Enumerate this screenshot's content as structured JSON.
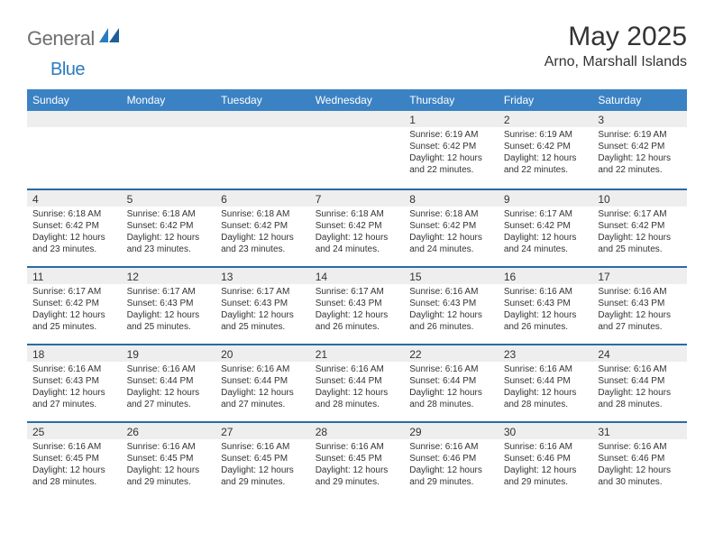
{
  "brand": {
    "name_a": "General",
    "name_b": "Blue"
  },
  "title": "May 2025",
  "location": "Arno, Marshall Islands",
  "colors": {
    "header_bg": "#3b82c4",
    "header_rule": "#2b6aa3",
    "band_bg": "#eeeeee",
    "text": "#333333",
    "logo_gray": "#6f6f6f",
    "logo_blue": "#2b7bbf",
    "page_bg": "#ffffff"
  },
  "day_names": [
    "Sunday",
    "Monday",
    "Tuesday",
    "Wednesday",
    "Thursday",
    "Friday",
    "Saturday"
  ],
  "weeks": [
    [
      {
        "n": "",
        "sunrise": "",
        "sunset": "",
        "daylight": ""
      },
      {
        "n": "",
        "sunrise": "",
        "sunset": "",
        "daylight": ""
      },
      {
        "n": "",
        "sunrise": "",
        "sunset": "",
        "daylight": ""
      },
      {
        "n": "",
        "sunrise": "",
        "sunset": "",
        "daylight": ""
      },
      {
        "n": "1",
        "sunrise": "Sunrise: 6:19 AM",
        "sunset": "Sunset: 6:42 PM",
        "daylight": "Daylight: 12 hours and 22 minutes."
      },
      {
        "n": "2",
        "sunrise": "Sunrise: 6:19 AM",
        "sunset": "Sunset: 6:42 PM",
        "daylight": "Daylight: 12 hours and 22 minutes."
      },
      {
        "n": "3",
        "sunrise": "Sunrise: 6:19 AM",
        "sunset": "Sunset: 6:42 PM",
        "daylight": "Daylight: 12 hours and 22 minutes."
      }
    ],
    [
      {
        "n": "4",
        "sunrise": "Sunrise: 6:18 AM",
        "sunset": "Sunset: 6:42 PM",
        "daylight": "Daylight: 12 hours and 23 minutes."
      },
      {
        "n": "5",
        "sunrise": "Sunrise: 6:18 AM",
        "sunset": "Sunset: 6:42 PM",
        "daylight": "Daylight: 12 hours and 23 minutes."
      },
      {
        "n": "6",
        "sunrise": "Sunrise: 6:18 AM",
        "sunset": "Sunset: 6:42 PM",
        "daylight": "Daylight: 12 hours and 23 minutes."
      },
      {
        "n": "7",
        "sunrise": "Sunrise: 6:18 AM",
        "sunset": "Sunset: 6:42 PM",
        "daylight": "Daylight: 12 hours and 24 minutes."
      },
      {
        "n": "8",
        "sunrise": "Sunrise: 6:18 AM",
        "sunset": "Sunset: 6:42 PM",
        "daylight": "Daylight: 12 hours and 24 minutes."
      },
      {
        "n": "9",
        "sunrise": "Sunrise: 6:17 AM",
        "sunset": "Sunset: 6:42 PM",
        "daylight": "Daylight: 12 hours and 24 minutes."
      },
      {
        "n": "10",
        "sunrise": "Sunrise: 6:17 AM",
        "sunset": "Sunset: 6:42 PM",
        "daylight": "Daylight: 12 hours and 25 minutes."
      }
    ],
    [
      {
        "n": "11",
        "sunrise": "Sunrise: 6:17 AM",
        "sunset": "Sunset: 6:42 PM",
        "daylight": "Daylight: 12 hours and 25 minutes."
      },
      {
        "n": "12",
        "sunrise": "Sunrise: 6:17 AM",
        "sunset": "Sunset: 6:43 PM",
        "daylight": "Daylight: 12 hours and 25 minutes."
      },
      {
        "n": "13",
        "sunrise": "Sunrise: 6:17 AM",
        "sunset": "Sunset: 6:43 PM",
        "daylight": "Daylight: 12 hours and 25 minutes."
      },
      {
        "n": "14",
        "sunrise": "Sunrise: 6:17 AM",
        "sunset": "Sunset: 6:43 PM",
        "daylight": "Daylight: 12 hours and 26 minutes."
      },
      {
        "n": "15",
        "sunrise": "Sunrise: 6:16 AM",
        "sunset": "Sunset: 6:43 PM",
        "daylight": "Daylight: 12 hours and 26 minutes."
      },
      {
        "n": "16",
        "sunrise": "Sunrise: 6:16 AM",
        "sunset": "Sunset: 6:43 PM",
        "daylight": "Daylight: 12 hours and 26 minutes."
      },
      {
        "n": "17",
        "sunrise": "Sunrise: 6:16 AM",
        "sunset": "Sunset: 6:43 PM",
        "daylight": "Daylight: 12 hours and 27 minutes."
      }
    ],
    [
      {
        "n": "18",
        "sunrise": "Sunrise: 6:16 AM",
        "sunset": "Sunset: 6:43 PM",
        "daylight": "Daylight: 12 hours and 27 minutes."
      },
      {
        "n": "19",
        "sunrise": "Sunrise: 6:16 AM",
        "sunset": "Sunset: 6:44 PM",
        "daylight": "Daylight: 12 hours and 27 minutes."
      },
      {
        "n": "20",
        "sunrise": "Sunrise: 6:16 AM",
        "sunset": "Sunset: 6:44 PM",
        "daylight": "Daylight: 12 hours and 27 minutes."
      },
      {
        "n": "21",
        "sunrise": "Sunrise: 6:16 AM",
        "sunset": "Sunset: 6:44 PM",
        "daylight": "Daylight: 12 hours and 28 minutes."
      },
      {
        "n": "22",
        "sunrise": "Sunrise: 6:16 AM",
        "sunset": "Sunset: 6:44 PM",
        "daylight": "Daylight: 12 hours and 28 minutes."
      },
      {
        "n": "23",
        "sunrise": "Sunrise: 6:16 AM",
        "sunset": "Sunset: 6:44 PM",
        "daylight": "Daylight: 12 hours and 28 minutes."
      },
      {
        "n": "24",
        "sunrise": "Sunrise: 6:16 AM",
        "sunset": "Sunset: 6:44 PM",
        "daylight": "Daylight: 12 hours and 28 minutes."
      }
    ],
    [
      {
        "n": "25",
        "sunrise": "Sunrise: 6:16 AM",
        "sunset": "Sunset: 6:45 PM",
        "daylight": "Daylight: 12 hours and 28 minutes."
      },
      {
        "n": "26",
        "sunrise": "Sunrise: 6:16 AM",
        "sunset": "Sunset: 6:45 PM",
        "daylight": "Daylight: 12 hours and 29 minutes."
      },
      {
        "n": "27",
        "sunrise": "Sunrise: 6:16 AM",
        "sunset": "Sunset: 6:45 PM",
        "daylight": "Daylight: 12 hours and 29 minutes."
      },
      {
        "n": "28",
        "sunrise": "Sunrise: 6:16 AM",
        "sunset": "Sunset: 6:45 PM",
        "daylight": "Daylight: 12 hours and 29 minutes."
      },
      {
        "n": "29",
        "sunrise": "Sunrise: 6:16 AM",
        "sunset": "Sunset: 6:46 PM",
        "daylight": "Daylight: 12 hours and 29 minutes."
      },
      {
        "n": "30",
        "sunrise": "Sunrise: 6:16 AM",
        "sunset": "Sunset: 6:46 PM",
        "daylight": "Daylight: 12 hours and 29 minutes."
      },
      {
        "n": "31",
        "sunrise": "Sunrise: 6:16 AM",
        "sunset": "Sunset: 6:46 PM",
        "daylight": "Daylight: 12 hours and 30 minutes."
      }
    ]
  ]
}
